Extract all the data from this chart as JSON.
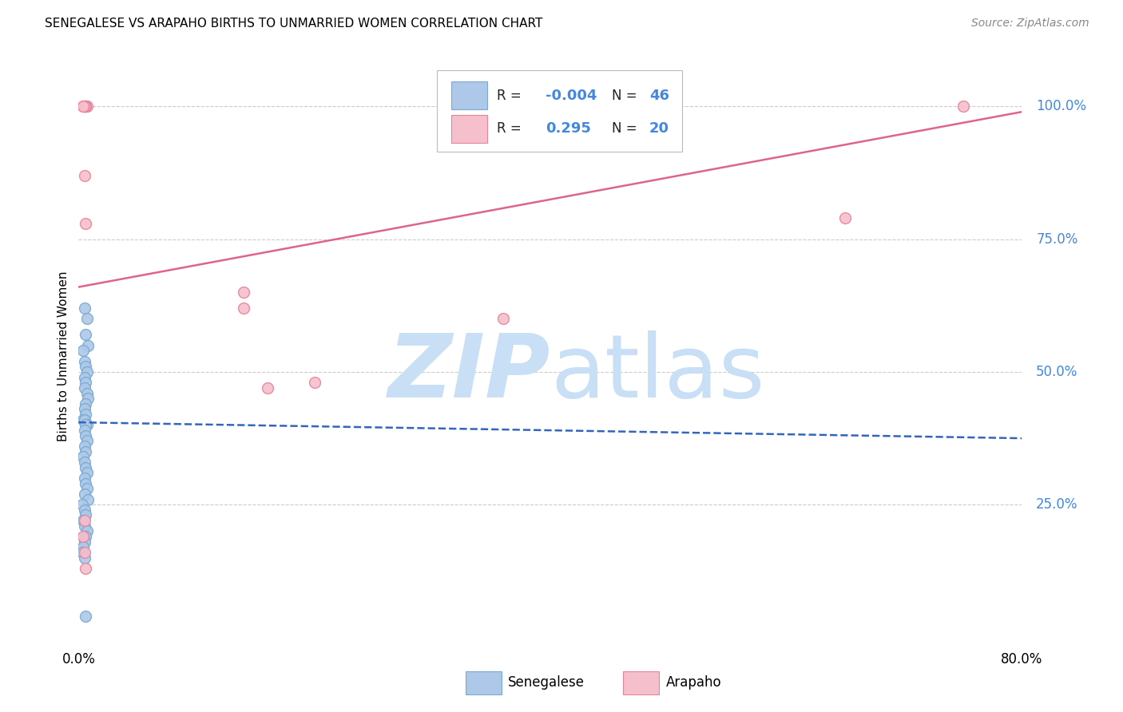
{
  "title": "SENEGALESE VS ARAPAHO BIRTHS TO UNMARRIED WOMEN CORRELATION CHART",
  "source": "Source: ZipAtlas.com",
  "ylabel": "Births to Unmarried Women",
  "xlim": [
    0.0,
    0.8
  ],
  "ylim": [
    -0.02,
    1.08
  ],
  "blue_R": "-0.004",
  "blue_N": "46",
  "pink_R": "0.295",
  "pink_N": "20",
  "blue_scatter_x": [
    0.005,
    0.007,
    0.006,
    0.008,
    0.004,
    0.005,
    0.006,
    0.007,
    0.005,
    0.006,
    0.005,
    0.007,
    0.008,
    0.006,
    0.005,
    0.006,
    0.004,
    0.005,
    0.007,
    0.006,
    0.005,
    0.006,
    0.007,
    0.005,
    0.006,
    0.004,
    0.005,
    0.006,
    0.007,
    0.005,
    0.006,
    0.007,
    0.005,
    0.008,
    0.003,
    0.005,
    0.006,
    0.004,
    0.005,
    0.007,
    0.006,
    0.005,
    0.004,
    0.003,
    0.005,
    0.006
  ],
  "blue_scatter_y": [
    0.62,
    0.6,
    0.57,
    0.55,
    0.54,
    0.52,
    0.51,
    0.5,
    0.49,
    0.48,
    0.47,
    0.46,
    0.45,
    0.44,
    0.43,
    0.42,
    0.41,
    0.41,
    0.4,
    0.4,
    0.39,
    0.38,
    0.37,
    0.36,
    0.35,
    0.34,
    0.33,
    0.32,
    0.31,
    0.3,
    0.29,
    0.28,
    0.27,
    0.26,
    0.25,
    0.24,
    0.23,
    0.22,
    0.21,
    0.2,
    0.19,
    0.18,
    0.17,
    0.16,
    0.15,
    0.04
  ],
  "pink_scatter_x": [
    0.004,
    0.006,
    0.007,
    0.005,
    0.006,
    0.005,
    0.004,
    0.005,
    0.006,
    0.14,
    0.2,
    0.14,
    0.16,
    0.36,
    0.65,
    0.75,
    0.005,
    0.004,
    0.005,
    0.006
  ],
  "pink_scatter_y": [
    1.0,
    1.0,
    1.0,
    1.0,
    1.0,
    1.0,
    1.0,
    0.87,
    0.78,
    0.62,
    0.48,
    0.65,
    0.47,
    0.6,
    0.79,
    1.0,
    0.22,
    0.19,
    0.16,
    0.13
  ],
  "blue_line_x": [
    0.0,
    0.8
  ],
  "blue_line_y": [
    0.405,
    0.375
  ],
  "pink_line_x": [
    0.0,
    0.8
  ],
  "pink_line_y": [
    0.66,
    0.99
  ],
  "scatter_size": 100,
  "blue_color": "#adc8e8",
  "blue_edge_color": "#7aaad0",
  "pink_color": "#f5bfcc",
  "pink_edge_color": "#e8839a",
  "blue_line_color": "#3366bb",
  "pink_line_color": "#dd6688",
  "grid_color": "#cccccc",
  "right_label_color": "#4488dd",
  "watermark_zip_color": "#c8dff5",
  "watermark_atlas_color": "#c8dff5",
  "background_color": "#ffffff",
  "legend_text_color": "#4488dd",
  "legend_R_label_color": "#222222"
}
